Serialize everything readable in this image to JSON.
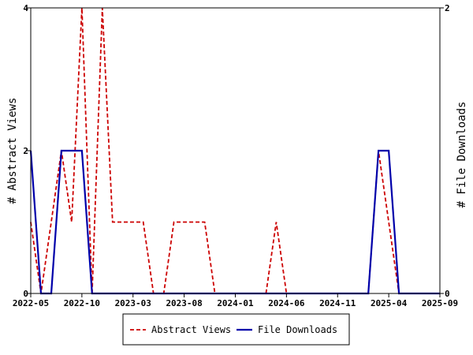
{
  "chart_data": {
    "type": "line",
    "x_labels": [
      "2022-05",
      "2022-10",
      "2023-03",
      "2023-08",
      "2024-01",
      "2024-06",
      "2024-11",
      "2025-04",
      "2025-09"
    ],
    "y_left": {
      "label": "# Abstract Views",
      "ticks": [
        "0",
        "2",
        "4"
      ],
      "range": [
        0,
        4
      ]
    },
    "y_right": {
      "label": "# File Downloads",
      "ticks": [
        "0",
        "2"
      ],
      "range": [
        0,
        2
      ]
    },
    "x_range_months": [
      0,
      40
    ],
    "grid": false,
    "legend_position": "bottom-center",
    "series": [
      {
        "name": "Abstract Views",
        "axis": "left",
        "color": "#cc0000",
        "dash": "dashed",
        "points": [
          [
            0,
            1
          ],
          [
            1,
            0
          ],
          [
            2,
            1
          ],
          [
            3,
            2
          ],
          [
            4,
            1
          ],
          [
            5,
            4
          ],
          [
            6,
            0
          ],
          [
            7,
            4
          ],
          [
            8,
            1
          ],
          [
            9,
            1
          ],
          [
            10,
            1
          ],
          [
            11,
            1
          ],
          [
            12,
            0
          ],
          [
            13,
            0
          ],
          [
            14,
            1
          ],
          [
            15,
            1
          ],
          [
            16,
            1
          ],
          [
            17,
            1
          ],
          [
            18,
            0
          ],
          [
            19,
            0
          ],
          [
            20,
            0
          ],
          [
            21,
            0
          ],
          [
            22,
            0
          ],
          [
            23,
            0
          ],
          [
            24,
            1
          ],
          [
            25,
            0
          ],
          [
            26,
            0
          ],
          [
            27,
            0
          ],
          [
            28,
            0
          ],
          [
            29,
            0
          ],
          [
            30,
            0
          ],
          [
            31,
            0
          ],
          [
            32,
            0
          ],
          [
            33,
            0
          ],
          [
            34,
            2
          ],
          [
            35,
            1
          ],
          [
            36,
            0
          ],
          [
            37,
            0
          ],
          [
            38,
            0
          ],
          [
            39,
            0
          ],
          [
            40,
            0
          ]
        ]
      },
      {
        "name": "File Downloads",
        "axis": "right",
        "color": "#0000aa",
        "dash": "solid",
        "points": [
          [
            0,
            1
          ],
          [
            1,
            0
          ],
          [
            2,
            0
          ],
          [
            3,
            1
          ],
          [
            4,
            1
          ],
          [
            5,
            1
          ],
          [
            6,
            0
          ],
          [
            7,
            0
          ],
          [
            8,
            0
          ],
          [
            9,
            0
          ],
          [
            10,
            0
          ],
          [
            11,
            0
          ],
          [
            12,
            0
          ],
          [
            13,
            0
          ],
          [
            14,
            0
          ],
          [
            15,
            0
          ],
          [
            16,
            0
          ],
          [
            17,
            0
          ],
          [
            18,
            0
          ],
          [
            19,
            0
          ],
          [
            20,
            0
          ],
          [
            21,
            0
          ],
          [
            22,
            0
          ],
          [
            23,
            0
          ],
          [
            24,
            0
          ],
          [
            25,
            0
          ],
          [
            26,
            0
          ],
          [
            27,
            0
          ],
          [
            28,
            0
          ],
          [
            29,
            0
          ],
          [
            30,
            0
          ],
          [
            31,
            0
          ],
          [
            32,
            0
          ],
          [
            33,
            0
          ],
          [
            34,
            1
          ],
          [
            35,
            1
          ],
          [
            36,
            0
          ],
          [
            37,
            0
          ],
          [
            38,
            0
          ],
          [
            39,
            0
          ],
          [
            40,
            0
          ]
        ]
      }
    ]
  }
}
